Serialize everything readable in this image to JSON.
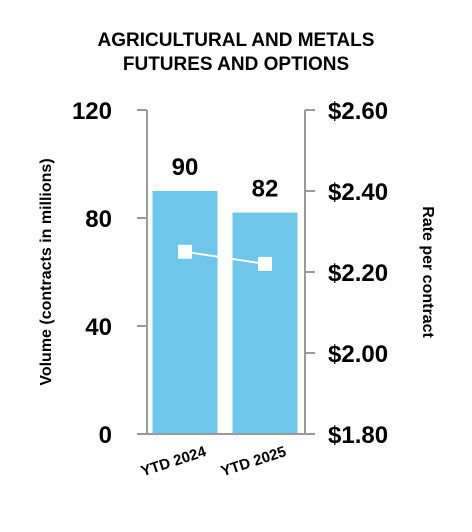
{
  "chart_data": {
    "type": "bar",
    "title_lines": [
      "AGRICULTURAL AND METALS",
      "FUTURES AND OPTIONS"
    ],
    "categories": [
      "YTD 2024",
      "YTD 2025"
    ],
    "series": [
      {
        "name": "",
        "type": "bar",
        "axis": "left",
        "values": [
          90,
          82
        ]
      },
      {
        "name": "",
        "type": "line",
        "axis": "right",
        "values": [
          2.25,
          2.22
        ]
      }
    ],
    "data_labels": [
      "90",
      "82"
    ],
    "ylabel": "Volume (contracts in millions)",
    "y2label": "Rate per contract",
    "ylim": [
      0,
      120
    ],
    "y2lim": [
      1.8,
      2.6
    ],
    "yticks": [
      0,
      40,
      80,
      120
    ],
    "yticks_labels": [
      "0",
      "40",
      "80",
      "120"
    ],
    "y2ticks": [
      1.8,
      2.0,
      2.2,
      2.4,
      2.6
    ],
    "y2ticks_labels": [
      "$1.80",
      "$2.00",
      "$2.20",
      "$2.40",
      "$2.60"
    ],
    "grid": false,
    "legend": "none",
    "colors": {
      "bar": "#6ec6ea",
      "line": "#ffffff",
      "marker": "#ffffff",
      "axis": "#9a9a9a",
      "text": "#000000"
    }
  }
}
